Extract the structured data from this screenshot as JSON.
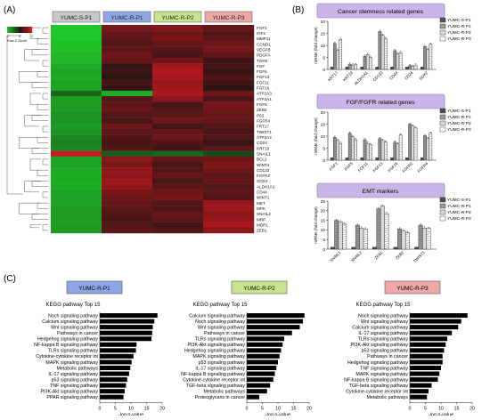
{
  "panel_labels": {
    "a": "(A)",
    "b": "(B)",
    "c": "(C)"
  },
  "heatmap": {
    "colorkey_label": "Row Z-Score",
    "colorkey_ticks": [
      "-2",
      "0",
      "2"
    ],
    "columns": [
      "YUMC-S-P1",
      "YUMC-R-P1",
      "YUMC-R-P2",
      "YUMC-R-P3"
    ],
    "column_colors": [
      "#c8c8c8",
      "#8fa6e6",
      "#c9e48f",
      "#f0a7a7"
    ],
    "genes": [
      "FGF1",
      "IGF1",
      "MMP11",
      "CCND1",
      "VEGFB",
      "PDGFA",
      "TGFB",
      "FGF",
      "FGF6",
      "FGF13",
      "FGF11",
      "FGF16",
      "ATP2A3",
      "ATP2A1",
      "FGF5",
      "ZEB2",
      "P53",
      "FGFR4",
      "FRT17",
      "TWIST1",
      "ATP2A2",
      "CD24",
      "KRT19",
      "SNAIL1",
      "BCL2",
      "WINT4",
      "CD133",
      "FGFR2",
      "SOX2",
      "ALDH1A1",
      "CD44",
      "WINT1",
      "MET",
      "MPK",
      "SNAIL2",
      "MRP",
      "MDR1",
      "ZEB1"
    ],
    "zscores": [
      [
        -2.0,
        1.0,
        1.1,
        0.8
      ],
      [
        -2.0,
        0.8,
        0.9,
        0.6
      ],
      [
        -2.0,
        0.7,
        1.0,
        0.7
      ],
      [
        -1.9,
        0.6,
        0.8,
        0.9
      ],
      [
        -1.9,
        0.7,
        0.6,
        1.0
      ],
      [
        -1.8,
        0.9,
        0.5,
        0.7
      ],
      [
        -1.8,
        0.8,
        0.9,
        0.4
      ],
      [
        -1.7,
        0.3,
        1.4,
        0.5
      ],
      [
        -1.6,
        0.4,
        1.6,
        0.3
      ],
      [
        -1.7,
        0.2,
        1.5,
        0.6
      ],
      [
        -1.6,
        0.5,
        1.3,
        0.4
      ],
      [
        -1.6,
        0.3,
        1.4,
        0.2
      ],
      [
        -0.9,
        -1.7,
        1.5,
        0.9
      ],
      [
        -1.5,
        0.6,
        1.2,
        0.5
      ],
      [
        -1.5,
        0.7,
        0.5,
        1.0
      ],
      [
        -1.5,
        0.8,
        0.6,
        0.9
      ],
      [
        -1.4,
        0.6,
        0.7,
        0.8
      ],
      [
        -1.4,
        0.5,
        0.9,
        0.8
      ],
      [
        -1.5,
        0.9,
        0.4,
        0.6
      ],
      [
        -1.4,
        0.7,
        0.8,
        0.5
      ],
      [
        -1.3,
        0.6,
        0.9,
        0.6
      ],
      [
        -1.2,
        0.5,
        0.6,
        0.3
      ],
      [
        -1.3,
        0.6,
        0.4,
        0.7
      ],
      [
        1.8,
        -0.8,
        -0.9,
        -0.6
      ],
      [
        -1.6,
        1.2,
        0.8,
        0.9
      ],
      [
        -1.6,
        1.0,
        0.5,
        1.1
      ],
      [
        -1.7,
        1.3,
        0.6,
        0.9
      ],
      [
        -1.7,
        1.2,
        0.8,
        0.7
      ],
      [
        -1.7,
        1.4,
        0.5,
        0.8
      ],
      [
        -1.7,
        1.3,
        0.7,
        0.6
      ],
      [
        -1.6,
        1.0,
        0.9,
        0.7
      ],
      [
        -1.6,
        0.9,
        1.0,
        0.6
      ],
      [
        -1.6,
        0.8,
        0.6,
        1.3
      ],
      [
        -1.5,
        0.7,
        0.5,
        1.4
      ],
      [
        -1.5,
        0.6,
        0.8,
        1.2
      ],
      [
        -1.5,
        0.5,
        0.7,
        1.3
      ],
      [
        -1.5,
        0.6,
        0.4,
        1.5
      ],
      [
        -1.5,
        0.7,
        0.6,
        1.2
      ]
    ]
  },
  "qpcr": {
    "legend": [
      "YUMC-S-P1",
      "YUMC-R-P1",
      "YUMC-R-P2",
      "YUMC-R-P3"
    ],
    "charts": [
      {
        "title": "Cancer stemness related genes",
        "ylabel": "mRNA (fold change)",
        "ylim": [
          0,
          20
        ],
        "ticks": [
          0,
          5,
          10,
          15,
          20
        ],
        "categories": [
          "KRT17",
          "KRT19",
          "ALDH1A1",
          "CD133",
          "CD44",
          "CD24",
          "SOX2"
        ],
        "series": [
          [
            1,
            1,
            1,
            1,
            1,
            1,
            1
          ],
          [
            10.8,
            2.2,
            5.5,
            15.8,
            7.8,
            1.6,
            9.5
          ],
          [
            8.0,
            1.8,
            6.2,
            14.2,
            6.5,
            1.3,
            8.2
          ],
          [
            12.5,
            2.0,
            5.0,
            12.8,
            7.0,
            1.8,
            10.5
          ]
        ]
      },
      {
        "title": "FGF/FGFR related genes",
        "ylabel": "mRNA (fold change)",
        "ylim": [
          0,
          20
        ],
        "ticks": [
          0,
          5,
          10,
          15,
          20
        ],
        "categories": [
          "FGF1",
          "FGF5",
          "FGF11",
          "FGF13",
          "FGF16",
          "FGFR2",
          "FGFR4"
        ],
        "series": [
          [
            1,
            1,
            1,
            1,
            1,
            1,
            1
          ],
          [
            9.5,
            11.2,
            8.5,
            9.0,
            7.5,
            15.0,
            10.2
          ],
          [
            8.2,
            9.8,
            7.0,
            8.2,
            6.8,
            14.2,
            9.0
          ],
          [
            7.0,
            8.5,
            6.5,
            7.5,
            10.5,
            13.5,
            11.2
          ]
        ]
      },
      {
        "title": "EMT markers",
        "ylabel": "mRNA (fold change)",
        "ylim": [
          0,
          25
        ],
        "ticks": [
          0,
          5,
          10,
          15,
          20,
          25
        ],
        "categories": [
          "SNAIL1",
          "SNAIL2",
          "ZEB1",
          "ZEB2",
          "TWIST1"
        ],
        "series": [
          [
            1,
            1,
            1,
            1,
            1
          ],
          [
            15.0,
            12.5,
            21.0,
            10.5,
            12.5
          ],
          [
            14.2,
            11.0,
            22.5,
            9.5,
            11.0
          ],
          [
            13.0,
            10.5,
            18.5,
            8.5,
            10.8
          ]
        ]
      }
    ]
  },
  "kegg": {
    "panels": [
      {
        "sample": "YUMC-R-P1",
        "sample_color": "#8fa6e6",
        "title": "KEGG pathway Top 15",
        "terms": [
          "Noch signaling pathway",
          "Calcium signaling pathway",
          "Wnt signaling pathway",
          "Pathways in cancer",
          "Hedgehog signaling pathway",
          "NF-kappa B signaling pathway",
          "TLRs signaling pathway",
          "Cytokine-cytokine receptor int",
          "MAPK signaling pathway",
          "Metabolic pathways",
          "IL-17 signaling pathway",
          "p53 signaling pathway",
          "TNF signaling pathway",
          "PI3K-Akt signaling pathway",
          "PPAR signaling pathway"
        ],
        "values": [
          18.5,
          17.5,
          17.0,
          16.8,
          16.6,
          11.8,
          11.6,
          10.8,
          10.2,
          9.8,
          9.4,
          8.8,
          8.4,
          8.0,
          7.6
        ]
      },
      {
        "sample": "YUMC-R-P2",
        "sample_color": "#c9e48f",
        "title": "KEGG pathway Top 15",
        "terms": [
          "Calcium signaling pathway",
          "Noch signaling pathway",
          "Wnt signaling pathway",
          "Pathways in cancer",
          "TLRs signaling pathway",
          "PI3K-Akt signaling pathway",
          "Hedgehog signaling pathway",
          "MAPK signaling pathway",
          "p53 signaling pathway",
          "IL-17 signaling pathway",
          "NF-kappa B signaling pathway",
          "Cytokine-cytokine receptor int",
          "TGF-beta signaling pathway",
          "Metabolic pathways",
          "Proteoglycans in cancer"
        ],
        "values": [
          18.5,
          18.0,
          17.0,
          14.5,
          12.0,
          11.5,
          11.0,
          10.5,
          10.0,
          9.5,
          9.0,
          8.5,
          7.5,
          6.5,
          4.0
        ]
      },
      {
        "sample": "YUMC-R-P3",
        "sample_color": "#f0a7a7",
        "title": "KEGG pathway Top 15",
        "terms": [
          "Noch signaling pathway",
          "Wnt signaling pathway",
          "Calcium signaling pathway",
          "IL-17 signaling pathway",
          "TLRs signaling pathway",
          "PI3K-Akt signaling pathway",
          "p53 signaling pathway",
          "Pathways in cancer",
          "Hedgehog signaling pathway",
          "TNF signaling pathway",
          "MAPK signaling pathway",
          "NF-kappa B signaling pathway",
          "TGF-beta signaling pathway",
          "Cytokine-cytokine receptor int",
          "Metabolic pathways"
        ],
        "values": [
          18.5,
          16.5,
          15.5,
          13.5,
          12.0,
          11.5,
          11.0,
          10.5,
          10.5,
          10.0,
          9.5,
          9.0,
          7.0,
          6.0,
          5.5
        ]
      }
    ],
    "xlabel": "-log p-value",
    "ticks": [
      0,
      5,
      10,
      15,
      20
    ],
    "xlim": [
      0,
      20
    ]
  },
  "chart_data": [
    {
      "type": "heatmap",
      "title": "",
      "columns": [
        "YUMC-S-P1",
        "YUMC-R-P1",
        "YUMC-R-P2",
        "YUMC-R-P3"
      ],
      "legend": "Row Z-Score",
      "range": [
        -2,
        2
      ]
    },
    {
      "type": "bar",
      "title": "Cancer stemness related genes",
      "ylabel": "mRNA (fold change)",
      "categories": [
        "KRT17",
        "KRT19",
        "ALDH1A1",
        "CD133",
        "CD44",
        "CD24",
        "SOX2"
      ],
      "ylim": [
        0,
        20
      ],
      "series": [
        {
          "name": "YUMC-S-P1",
          "values": [
            1,
            1,
            1,
            1,
            1,
            1,
            1
          ]
        },
        {
          "name": "YUMC-R-P1",
          "values": [
            10.8,
            2.2,
            5.5,
            15.8,
            7.8,
            1.6,
            9.5
          ]
        },
        {
          "name": "YUMC-R-P2",
          "values": [
            8.0,
            1.8,
            6.2,
            14.2,
            6.5,
            1.3,
            8.2
          ]
        },
        {
          "name": "YUMC-R-P3",
          "values": [
            12.5,
            2.0,
            5.0,
            12.8,
            7.0,
            1.8,
            10.5
          ]
        }
      ]
    },
    {
      "type": "bar",
      "title": "FGF/FGFR related genes",
      "ylabel": "mRNA (fold change)",
      "categories": [
        "FGF1",
        "FGF5",
        "FGF11",
        "FGF13",
        "FGF16",
        "FGFR2",
        "FGFR4"
      ],
      "ylim": [
        0,
        20
      ],
      "series": [
        {
          "name": "YUMC-S-P1",
          "values": [
            1,
            1,
            1,
            1,
            1,
            1,
            1
          ]
        },
        {
          "name": "YUMC-R-P1",
          "values": [
            9.5,
            11.2,
            8.5,
            9.0,
            7.5,
            15.0,
            10.2
          ]
        },
        {
          "name": "YUMC-R-P2",
          "values": [
            8.2,
            9.8,
            7.0,
            8.2,
            6.8,
            14.2,
            9.0
          ]
        },
        {
          "name": "YUMC-R-P3",
          "values": [
            7.0,
            8.5,
            6.5,
            7.5,
            10.5,
            13.5,
            11.2
          ]
        }
      ]
    },
    {
      "type": "bar",
      "title": "EMT markers",
      "ylabel": "mRNA (fold change)",
      "categories": [
        "SNAIL1",
        "SNAIL2",
        "ZEB1",
        "ZEB2",
        "TWIST1"
      ],
      "ylim": [
        0,
        25
      ],
      "series": [
        {
          "name": "YUMC-S-P1",
          "values": [
            1,
            1,
            1,
            1,
            1
          ]
        },
        {
          "name": "YUMC-R-P1",
          "values": [
            15.0,
            12.5,
            21.0,
            10.5,
            12.5
          ]
        },
        {
          "name": "YUMC-R-P2",
          "values": [
            14.2,
            11.0,
            22.5,
            9.5,
            11.0
          ]
        },
        {
          "name": "YUMC-R-P3",
          "values": [
            13.0,
            10.5,
            18.5,
            8.5,
            10.8
          ]
        }
      ]
    },
    {
      "type": "bar",
      "title": "KEGG pathway Top 15",
      "orientation": "horizontal",
      "xlabel": "-log p-value",
      "xlim": [
        0,
        20
      ],
      "categories": [
        "Noch signaling pathway",
        "Calcium signaling pathway",
        "Wnt signaling pathway",
        "Pathways in cancer",
        "Hedgehog signaling pathway",
        "NF-kappa B signaling pathway",
        "TLRs signaling pathway",
        "Cytokine-cytokine receptor int",
        "MAPK signaling pathway",
        "Metabolic pathways",
        "IL-17 signaling pathway",
        "p53 signaling pathway",
        "TNF signaling pathway",
        "PI3K-Akt signaling pathway",
        "PPAR signaling pathway"
      ],
      "series": [
        {
          "name": "YUMC-R-P1",
          "values": [
            18.5,
            17.5,
            17.0,
            16.8,
            16.6,
            11.8,
            11.6,
            10.8,
            10.2,
            9.8,
            9.4,
            8.8,
            8.4,
            8.0,
            7.6
          ]
        }
      ]
    },
    {
      "type": "bar",
      "title": "KEGG pathway Top 15",
      "orientation": "horizontal",
      "xlabel": "-log p-value",
      "xlim": [
        0,
        20
      ],
      "categories": [
        "Calcium signaling pathway",
        "Noch signaling pathway",
        "Wnt signaling pathway",
        "Pathways in cancer",
        "TLRs signaling pathway",
        "PI3K-Akt signaling pathway",
        "Hedgehog signaling pathway",
        "MAPK signaling pathway",
        "p53 signaling pathway",
        "IL-17 signaling pathway",
        "NF-kappa B signaling pathway",
        "Cytokine-cytokine receptor int",
        "TGF-beta signaling pathway",
        "Metabolic pathways",
        "Proteoglycans in cancer"
      ],
      "series": [
        {
          "name": "YUMC-R-P2",
          "values": [
            18.5,
            18.0,
            17.0,
            14.5,
            12.0,
            11.5,
            11.0,
            10.5,
            10.0,
            9.5,
            9.0,
            8.5,
            7.5,
            6.5,
            4.0
          ]
        }
      ]
    },
    {
      "type": "bar",
      "title": "KEGG pathway Top 15",
      "orientation": "horizontal",
      "xlabel": "-log p-value",
      "xlim": [
        0,
        20
      ],
      "categories": [
        "Noch signaling pathway",
        "Wnt signaling pathway",
        "Calcium signaling pathway",
        "IL-17 signaling pathway",
        "TLRs signaling pathway",
        "PI3K-Akt signaling pathway",
        "p53 signaling pathway",
        "Pathways in cancer",
        "Hedgehog signaling pathway",
        "TNF signaling pathway",
        "MAPK signaling pathway",
        "NF-kappa B signaling pathway",
        "TGF-beta signaling pathway",
        "Cytokine-cytokine receptor int",
        "Metabolic pathways"
      ],
      "series": [
        {
          "name": "YUMC-R-P3",
          "values": [
            18.5,
            16.5,
            15.5,
            13.5,
            12.0,
            11.5,
            11.0,
            10.5,
            10.5,
            10.0,
            9.5,
            9.0,
            7.0,
            6.0,
            5.5
          ]
        }
      ]
    }
  ]
}
